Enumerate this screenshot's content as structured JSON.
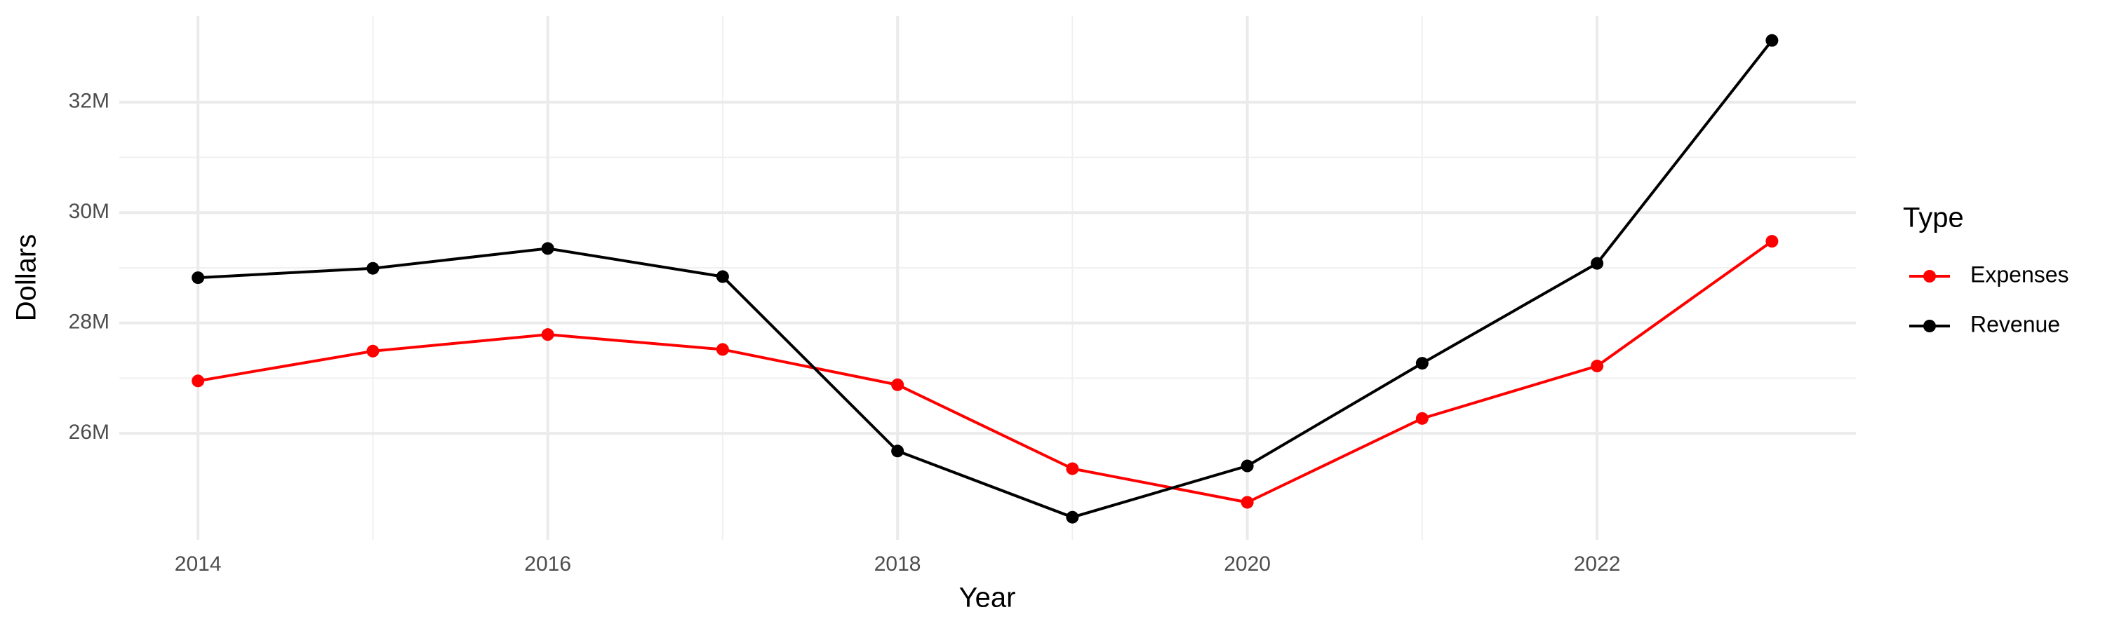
{
  "chart_data": {
    "type": "line",
    "x_label": "Year",
    "y_label": "Dollars",
    "legend_title": "Type",
    "legend": "right",
    "grid": true,
    "x": [
      2014,
      2015,
      2016,
      2017,
      2018,
      2019,
      2020,
      2021,
      2022,
      2023
    ],
    "series": [
      {
        "name": "Expenses",
        "color": "#ff0000",
        "values": [
          26950000,
          27490000,
          27790000,
          27520000,
          26880000,
          25360000,
          24750000,
          26270000,
          27220000,
          29480000
        ]
      },
      {
        "name": "Revenue",
        "color": "#000000",
        "values": [
          28820000,
          28990000,
          29350000,
          28840000,
          25680000,
          24480000,
          25410000,
          27270000,
          29080000,
          33120000
        ]
      }
    ],
    "xlim": [
      2013.55,
      2023.48
    ],
    "xticks": [
      2014,
      2016,
      2018,
      2020,
      2022
    ],
    "ylim": [
      24070000,
      33560000
    ],
    "yticks": [
      {
        "value": 26000000,
        "label": "26M"
      },
      {
        "value": 28000000,
        "label": "28M"
      },
      {
        "value": 30000000,
        "label": "30M"
      },
      {
        "value": 32000000,
        "label": "32M"
      }
    ]
  }
}
